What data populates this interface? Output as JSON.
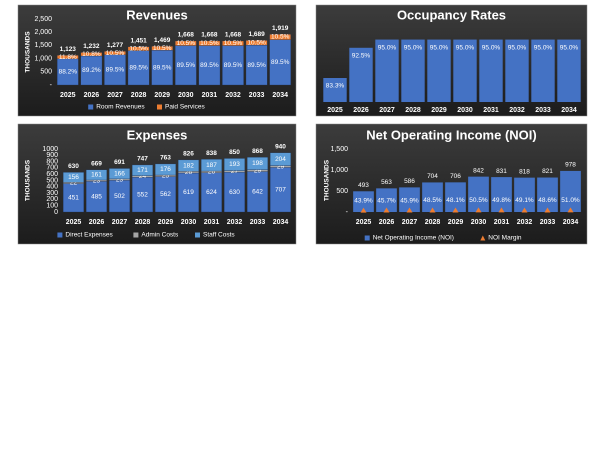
{
  "chart_data": [
    {
      "type": "bar",
      "stacked": true,
      "title": "Revenues",
      "ylabel": "THOUSANDS",
      "categories": [
        "2025",
        "2026",
        "2027",
        "2028",
        "2029",
        "2030",
        "2031",
        "2032",
        "2033",
        "2034"
      ],
      "series": [
        {
          "name": "Room Revenues",
          "color": "#4472c4",
          "values": [
            990,
            1099,
            1143,
            1299,
            1315,
            1493,
            1493,
            1493,
            1512,
            1718
          ],
          "share_labels": [
            "88.2%",
            "89.2%",
            "89.5%",
            "89.5%",
            "89.5%",
            "89.5%",
            "89.5%",
            "89.5%",
            "89.5%",
            "89.5%"
          ]
        },
        {
          "name": "Paid Services",
          "color": "#ed7d31",
          "values": [
            133,
            133,
            134,
            152,
            154,
            175,
            175,
            175,
            177,
            201
          ],
          "share_labels": [
            "11.8%",
            "10.8%",
            "10.5%",
            "10.5%",
            "10.5%",
            "10.5%",
            "10.5%",
            "10.5%",
            "10.5%",
            "10.5%"
          ]
        }
      ],
      "total_labels": [
        "1,123",
        "1,232",
        "1,277",
        "1,451",
        "1,469",
        "1,668",
        "1,668",
        "1,668",
        "1,689",
        "1,919"
      ],
      "ylim": [
        0,
        2500
      ],
      "yticks": [
        {
          "value": 0,
          "label": "-"
        },
        500,
        {
          "value": 1000,
          "label": "1,000"
        },
        {
          "value": 1500,
          "label": "1,500"
        },
        {
          "value": 2000,
          "label": "2,000"
        },
        {
          "value": 2500,
          "label": "2,500"
        }
      ],
      "legend": "bottom"
    },
    {
      "type": "bar",
      "title": "Occupancy Rates",
      "categories": [
        "2025",
        "2026",
        "2027",
        "2028",
        "2029",
        "2030",
        "2031",
        "2032",
        "2033",
        "2034"
      ],
      "values": [
        83.3,
        92.5,
        95.0,
        95.0,
        95.0,
        95.0,
        95.0,
        95.0,
        95.0,
        95.0
      ],
      "value_labels": [
        "83.3%",
        "92.5%",
        "95.0%",
        "95.0%",
        "95.0%",
        "95.0%",
        "95.0%",
        "95.0%",
        "95.0%",
        "95.0%"
      ],
      "color": "#4472c4",
      "ylim": [
        76,
        97
      ]
    },
    {
      "type": "bar",
      "stacked": true,
      "title": "Expenses",
      "ylabel": "THOUSANDS",
      "categories": [
        "2025",
        "2026",
        "2027",
        "2028",
        "2029",
        "2030",
        "2031",
        "2032",
        "2033",
        "2034"
      ],
      "series": [
        {
          "name": "Direct Expenses",
          "color": "#4472c4",
          "values": [
            451,
            485,
            502,
            552,
            562,
            619,
            624,
            630,
            642,
            707
          ]
        },
        {
          "name": "Admin Costs",
          "color": "#a5a5a5",
          "values": [
            22,
            23,
            23,
            24,
            25,
            26,
            26,
            27,
            29,
            29
          ]
        },
        {
          "name": "Staff Costs",
          "color": "#5b9bd5",
          "values": [
            156,
            161,
            166,
            171,
            176,
            182,
            187,
            193,
            198,
            204
          ]
        }
      ],
      "total_labels": [
        "630",
        "669",
        "691",
        "747",
        "763",
        "826",
        "838",
        "850",
        "868",
        "940"
      ],
      "ylim": [
        0,
        1000
      ],
      "yticks": [
        0,
        100,
        200,
        300,
        400,
        500,
        600,
        700,
        800,
        900,
        1000
      ],
      "legend": "bottom"
    },
    {
      "type": "bar",
      "title": "Net Operating Income (NOI)",
      "ylabel": "THOUSANDS",
      "categories": [
        "2025",
        "2026",
        "2027",
        "2028",
        "2029",
        "2030",
        "2031",
        "2032",
        "2033",
        "2034"
      ],
      "series": [
        {
          "name": "Net Operating Income (NOI)",
          "color": "#4472c4",
          "values": [
            493,
            563,
            586,
            704,
            706,
            842,
            831,
            818,
            821,
            978
          ]
        },
        {
          "name": "NOI Margin",
          "color": "#ed7d31",
          "axis": "y2",
          "marker": "triangle",
          "values": [
            43.9,
            45.7,
            45.9,
            48.5,
            48.1,
            50.5,
            49.8,
            49.1,
            48.6,
            51.0
          ],
          "value_labels": [
            "43.9%",
            "45.7%",
            "45.9%",
            "48.5%",
            "48.1%",
            "50.5%",
            "49.8%",
            "49.1%",
            "48.6%",
            "51.0%"
          ]
        }
      ],
      "ylim": [
        0,
        1500
      ],
      "yticks": [
        {
          "value": 0,
          "label": "-"
        },
        500,
        {
          "value": 1000,
          "label": "1,000"
        },
        {
          "value": 1500,
          "label": "1,500"
        }
      ],
      "y2lim": [
        0,
        2000
      ],
      "legend": "bottom"
    }
  ]
}
